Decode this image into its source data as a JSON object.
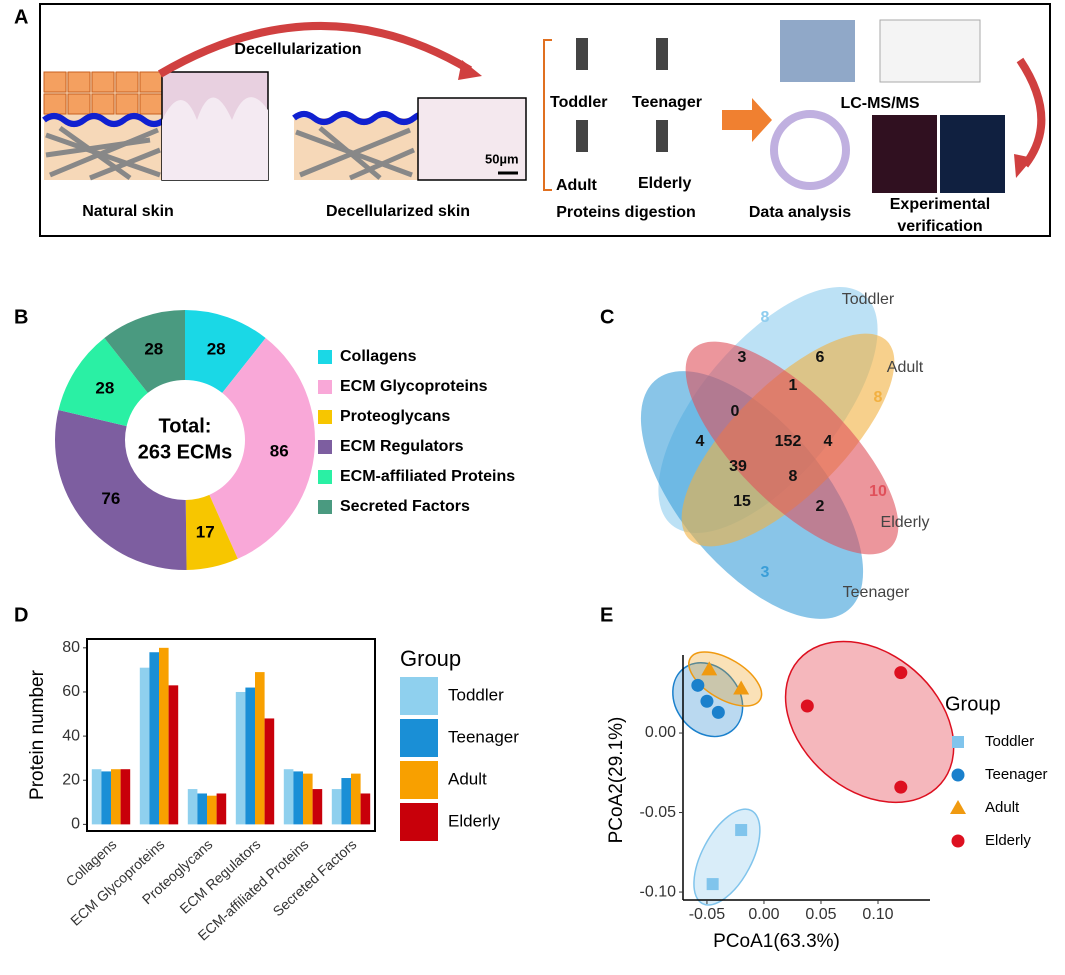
{
  "panels": [
    "A",
    "B",
    "C",
    "D",
    "E"
  ],
  "workflow": {
    "decellularization": "Decellularization",
    "natural_skin": "Natural skin",
    "decellularized_skin": "Decellularized skin",
    "scale_bar": "50µm",
    "groups": [
      "Toddler",
      "Teenager",
      "Adult",
      "Elderly"
    ],
    "digestion": "Proteins digestion",
    "lcms": "LC-MS/MS",
    "analysis": "Data analysis",
    "verification": [
      "Experimental",
      "verification"
    ]
  },
  "chart_data": [
    {
      "type": "pie",
      "center_text": [
        "Total:",
        "263 ECMs"
      ],
      "categories": [
        "Collagens",
        "ECM Glycoproteins",
        "Proteoglycans",
        "ECM Regulators",
        "ECM-affiliated Proteins",
        "Secreted Factors"
      ],
      "values": [
        28,
        86,
        17,
        76,
        28,
        28
      ],
      "colors": [
        "#1ad8e6",
        "#f9a8d8",
        "#f7c600",
        "#7d5ea0",
        "#2af0a4",
        "#4a9a80"
      ],
      "legend": "right"
    },
    {
      "type": "venn",
      "series": [
        {
          "name": "Toddler",
          "color": "#8fcdee"
        },
        {
          "name": "Teenager",
          "color": "#3a9ed8"
        },
        {
          "name": "Adult",
          "color": "#f2b040"
        },
        {
          "name": "Elderly",
          "color": "#e0505a"
        }
      ],
      "values": [
        8,
        6,
        8,
        3,
        1,
        4,
        0,
        152,
        4,
        39,
        8,
        10,
        15,
        2,
        3
      ]
    },
    {
      "type": "bar",
      "ylabel": "Protein number",
      "legend_title": "Group",
      "categories": [
        "Collagens",
        "ECM Glycoproteins",
        "Proteoglycans",
        "ECM Regulators",
        "ECM-affiliated Proteins",
        "Secreted Factors"
      ],
      "series": [
        {
          "name": "Toddler",
          "color": "#8fd0ee",
          "values": [
            25,
            71,
            16,
            60,
            25,
            16
          ]
        },
        {
          "name": "Teenager",
          "color": "#1a8fd6",
          "values": [
            24,
            78,
            14,
            62,
            24,
            21
          ]
        },
        {
          "name": "Adult",
          "color": "#f8a000",
          "values": [
            25,
            80,
            13,
            69,
            23,
            23
          ]
        },
        {
          "name": "Elderly",
          "color": "#c8000a",
          "values": [
            25,
            63,
            14,
            48,
            16,
            14
          ]
        }
      ],
      "ylim": [
        -3,
        84
      ],
      "yticks": [
        0,
        20,
        40,
        60,
        80
      ],
      "legend": "right"
    },
    {
      "type": "scatter",
      "xlabel": "PCoA1(63.3%)",
      "ylabel": "PCoA2(29.1%)",
      "legend_title": "Group",
      "series": [
        {
          "name": "Toddler",
          "color": "#80c4ec",
          "marker": "square",
          "x": [
            -0.045,
            -0.02
          ],
          "values": [
            -0.095,
            -0.061
          ]
        },
        {
          "name": "Teenager",
          "color": "#1a80cc",
          "marker": "circle",
          "x": [
            -0.058,
            -0.05,
            -0.04
          ],
          "values": [
            0.03,
            0.02,
            0.013
          ]
        },
        {
          "name": "Adult",
          "color": "#f09a10",
          "marker": "triangle",
          "x": [
            -0.048,
            -0.02
          ],
          "values": [
            0.04,
            0.028
          ]
        },
        {
          "name": "Elderly",
          "color": "#dd1020",
          "marker": "circle",
          "x": [
            0.038,
            0.12,
            0.12
          ],
          "values": [
            0.017,
            0.038,
            -0.034
          ]
        }
      ],
      "xlim": [
        -0.071,
        0.1456
      ],
      "ylim": [
        -0.105,
        0.0585
      ],
      "xticks": [
        {
          "value": -0.05,
          "label": "-0.05"
        },
        {
          "value": 0,
          "label": "0.00"
        },
        {
          "value": 0.05,
          "label": "0.05"
        },
        {
          "value": 0.1,
          "label": "0.10"
        }
      ],
      "yticks": [
        {
          "value": -0.1,
          "label": "-0.10"
        },
        {
          "value": -0.05,
          "label": "-0.05"
        },
        {
          "value": 0,
          "label": "0.00"
        }
      ],
      "legend": "right"
    }
  ]
}
